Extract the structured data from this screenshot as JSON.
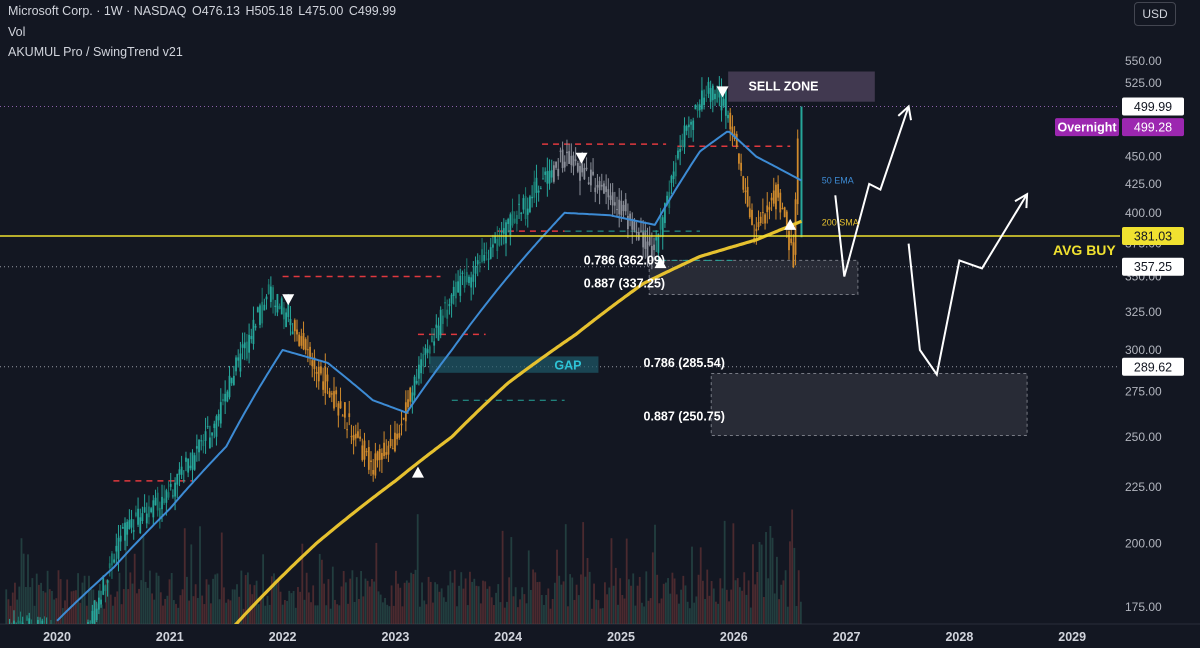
{
  "header": {
    "symbol": "Microsoft Corp. · 1W · NASDAQ",
    "open": "O476.13",
    "high": "H505.18",
    "low": "L475.00",
    "close": "C499.99",
    "indicator_1": "Vol",
    "indicator_2": "AKUMUL Pro / SwingTrend v21"
  },
  "currency_button": "USD",
  "colors": {
    "background": "#131722",
    "ema50": "#3d8bd4",
    "sma200": "#e6c12f",
    "avg_buy_line": "#f0e130",
    "candle_green": "#26a69a",
    "candle_orange": "#d08a2c",
    "candle_gray": "#8a8e98",
    "overnight_badge": "#9c27b0",
    "gap_zone": "#1e5a68",
    "sell_zone": "#4a4058"
  },
  "chart_data": {
    "type": "candlestick",
    "title": "Microsoft Corp. · 1W · NASDAQ",
    "x_axis": {
      "ticks": [
        "2020",
        "2021",
        "2022",
        "2023",
        "2024",
        "2025",
        "2026",
        "2027",
        "2028",
        "2029"
      ]
    },
    "y_axis": {
      "range": [
        165,
        565
      ],
      "ticks": [
        "175.00",
        "200.00",
        "225.00",
        "250.00",
        "275.00",
        "300.00",
        "325.00",
        "350.00",
        "375.00",
        "400.00",
        "425.00",
        "450.00",
        "475.00",
        "500.00",
        "525.00",
        "550.00"
      ],
      "scale": "log"
    },
    "price_labels": [
      {
        "value": 499.99,
        "text": "499.99"
      },
      {
        "value": 499.28,
        "text": "499.28",
        "tag": "Overnight"
      },
      {
        "value": 381.03,
        "text": "381.03"
      },
      {
        "value": 357.25,
        "text": "357.25"
      },
      {
        "value": 289.62,
        "text": "289.62"
      }
    ],
    "price_path_keypoints": [
      [
        2019.9,
        168
      ],
      [
        2020.2,
        155
      ],
      [
        2020.6,
        205
      ],
      [
        2021.0,
        220
      ],
      [
        2021.4,
        255
      ],
      [
        2021.9,
        340
      ],
      [
        2022.3,
        290
      ],
      [
        2022.8,
        235
      ],
      [
        2023.0,
        245
      ],
      [
        2023.5,
        335
      ],
      [
        2023.9,
        375
      ],
      [
        2024.5,
        450
      ],
      [
        2024.9,
        420
      ],
      [
        2025.3,
        365
      ],
      [
        2025.6,
        480
      ],
      [
        2025.8,
        520
      ],
      [
        2025.95,
        500
      ],
      [
        2026.2,
        380
      ],
      [
        2026.4,
        420
      ],
      [
        2026.55,
        360
      ],
      [
        2026.6,
        499.99
      ]
    ],
    "ema50_keypoints": [
      [
        2020.0,
        170
      ],
      [
        2020.5,
        190
      ],
      [
        2021.0,
        215
      ],
      [
        2021.5,
        245
      ],
      [
        2022.0,
        300
      ],
      [
        2022.4,
        292
      ],
      [
        2022.8,
        270
      ],
      [
        2023.1,
        263
      ],
      [
        2023.5,
        300
      ],
      [
        2023.9,
        340
      ],
      [
        2024.5,
        400
      ],
      [
        2024.9,
        398
      ],
      [
        2025.3,
        390
      ],
      [
        2025.7,
        455
      ],
      [
        2025.95,
        475
      ],
      [
        2026.2,
        450
      ],
      [
        2026.6,
        428
      ]
    ],
    "sma200_keypoints": [
      [
        2021.5,
        165
      ],
      [
        2022.3,
        200
      ],
      [
        2023.0,
        228
      ],
      [
        2023.5,
        250
      ],
      [
        2024.0,
        280
      ],
      [
        2024.6,
        310
      ],
      [
        2025.2,
        345
      ],
      [
        2025.7,
        365
      ],
      [
        2026.2,
        378
      ],
      [
        2026.6,
        393
      ]
    ],
    "lines": [
      {
        "label": "AVG BUY",
        "value": 381.03
      },
      {
        "label": "357.25",
        "value": 357.25
      },
      {
        "label": "289.62",
        "value": 289.62
      }
    ],
    "indicator_labels": [
      {
        "text": "50 EMA",
        "at": [
          2026.78,
          428
        ]
      },
      {
        "text": "200 SMA",
        "at": [
          2026.78,
          392
        ]
      }
    ],
    "zones": [
      {
        "label": "SELL ZONE",
        "x": [
          2025.95,
          2027.25
        ],
        "y": [
          505,
          538
        ]
      },
      {
        "label": "GAP",
        "x": [
          2023.3,
          2024.8
        ],
        "y": [
          286,
          296
        ]
      },
      {
        "label": "",
        "x": [
          2025.25,
          2027.1
        ],
        "y": [
          337,
          362
        ]
      },
      {
        "label": "",
        "x": [
          2025.8,
          2028.6
        ],
        "y": [
          250.75,
          285.54
        ]
      }
    ],
    "fib_labels": [
      {
        "text": "0.786 (362.09)",
        "at": [
          2024.67,
          362.09
        ]
      },
      {
        "text": "0.887 (337.25)",
        "at": [
          2024.67,
          345
        ]
      },
      {
        "text": "0.786 (285.54)",
        "at": [
          2025.2,
          292
        ]
      },
      {
        "text": "0.887 (250.75)",
        "at": [
          2025.2,
          261
        ]
      }
    ],
    "swing_resistance_levels": [
      {
        "value": 350,
        "x": [
          2022.0,
          2023.4
        ]
      },
      {
        "value": 462,
        "x": [
          2024.3,
          2025.4
        ]
      },
      {
        "value": 460,
        "x": [
          2025.5,
          2026.5
        ]
      },
      {
        "value": 228,
        "x": [
          2020.5,
          2021.2
        ]
      },
      {
        "value": 310,
        "x": [
          2023.2,
          2023.8
        ]
      },
      {
        "value": 385,
        "x": [
          2023.9,
          2024.5
        ]
      }
    ],
    "signals": [
      {
        "type": "sell",
        "at": [
          2020.1,
          165
        ]
      },
      {
        "type": "sell",
        "at": [
          2022.05,
          333
        ]
      },
      {
        "type": "buy",
        "at": [
          2023.2,
          232
        ]
      },
      {
        "type": "sell",
        "at": [
          2024.65,
          448
        ]
      },
      {
        "type": "buy",
        "at": [
          2025.35,
          360
        ]
      },
      {
        "type": "sell",
        "at": [
          2025.9,
          515
        ]
      },
      {
        "type": "buy",
        "at": [
          2026.5,
          390
        ]
      }
    ],
    "projection_arrows": [
      [
        [
          2026.9,
          415
        ],
        [
          2026.98,
          350
        ],
        [
          2027.2,
          425
        ],
        [
          2027.3,
          420
        ],
        [
          2027.55,
          500
        ]
      ],
      [
        [
          2027.55,
          375
        ],
        [
          2027.65,
          300
        ],
        [
          2027.8,
          285
        ],
        [
          2028.0,
          362
        ],
        [
          2028.2,
          356
        ],
        [
          2028.6,
          416
        ]
      ]
    ],
    "labels": {
      "sell_zone": "SELL ZONE",
      "gap": "GAP",
      "avg_buy": "AVG BUY",
      "overnight": "Overnight"
    }
  }
}
